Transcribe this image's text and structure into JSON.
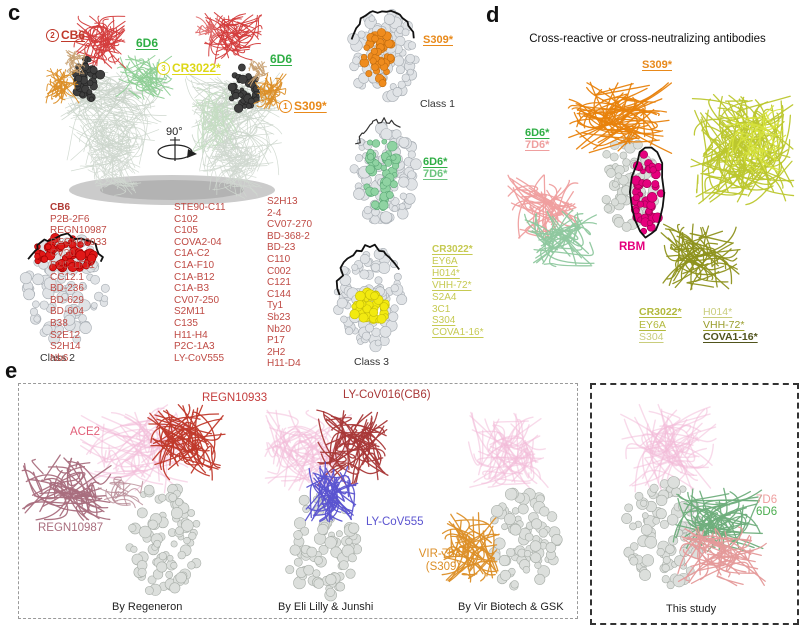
{
  "panel_c": {
    "letter": "c",
    "rotation": "90°",
    "spike_labels": {
      "cb6_num": "2",
      "cb6": "CB6",
      "d6_left": "6D6",
      "cr3022_num": "3",
      "cr3022": "CR3022*",
      "d6_right": "6D6",
      "s309_num": "1",
      "s309": "S309*"
    },
    "class1_epitope": "S309*",
    "class1_caption": "Class 1",
    "d6_star": "6D6*",
    "d7_star": "7D6*",
    "class2_caption": "Class 2",
    "class3_caption": "Class 3",
    "class2_antibodies_col1": [
      "CB6",
      "P2B-2F6",
      "REGN10987",
      "REGN10933",
      "CV30",
      "P2C-1F11",
      "CC12.1",
      "BD-236",
      "BD-629",
      "BD-604",
      "B38",
      "S2E12",
      "S2H14",
      "Nb6"
    ],
    "class2_antibodies_col2": [
      "STE90-C11",
      "C102",
      "C105",
      "COVA2-04",
      "C1A-C2",
      "C1A-F10",
      "C1A-B12",
      "C1A-B3",
      "CV07-250",
      "S2M11",
      "C135",
      "H11-H4",
      "P2C-1A3",
      "LY-CoV555"
    ],
    "class2_antibodies_col3": [
      "S2H13",
      "2-4",
      "CV07-270",
      "BD-368-2",
      "BD-23",
      "C110",
      "C002",
      "C121",
      "C144",
      "Ty1",
      "Sb23",
      "Nb20",
      "P17",
      "2H2",
      "H11-D4"
    ],
    "class3_antibodies": [
      {
        "label": "CR3022*",
        "bold": true,
        "underline": true
      },
      {
        "label": "EY6A",
        "underline": true
      },
      {
        "label": "H014*",
        "underline": true
      },
      {
        "label": "VHH-72*",
        "underline": true
      },
      {
        "label": "S2A4"
      },
      {
        "label": "3C1"
      },
      {
        "label": "S304",
        "underline": true
      },
      {
        "label": "COVA1-16*",
        "underline": true
      }
    ]
  },
  "panel_d": {
    "letter": "d",
    "title": "Cross-reactive or cross-neutralizing antibodies",
    "s309": "S309*",
    "d6": "6D6*",
    "d7": "7D6*",
    "rbm": "RBM",
    "group1": [
      {
        "label": "CR3022*",
        "bold": true,
        "underline": true
      },
      {
        "label": "EY6A",
        "underline": true
      },
      {
        "label": "S304",
        "underline": true,
        "tone": "light"
      }
    ],
    "group2": [
      {
        "label": "H014*",
        "underline": true,
        "tone": "light"
      },
      {
        "label": "VHH-72*",
        "underline": true
      },
      {
        "label": "COVA1-16*",
        "bold": true,
        "underline": true,
        "tone": "dark"
      }
    ]
  },
  "panel_e": {
    "letter": "e",
    "ace2": "ACE2",
    "regn10933": "REGN10933",
    "regn10987": "REGN10987",
    "ly_cov016": "LY-CoV016(CB6)",
    "ly_cov555": "LY-CoV555",
    "vir_line1": "VIR-7831",
    "vir_line2": "(S309)",
    "d7": "7D6",
    "d6": "6D6",
    "captions": [
      "By Regeneron",
      "By Eli Lilly & Junshi",
      "By Vir Biotech & GSK",
      "This study"
    ]
  },
  "colors": {
    "cb6_red": "#c0392b",
    "antibody_list_red": "#bf4a44",
    "green_6d6": "#2fae45",
    "light_green_7d6": "#6cc47e",
    "yellow_cr3022": "#ddd717",
    "pale_yellow_list": "#c6ca52",
    "orange_s309": "#e8891a",
    "magenta_rbm": "#e5007d",
    "olive": "#989c2a",
    "olive_dark": "#50531c",
    "pink_7d6": "#ef9f9f",
    "ace2_pink": "#e2607a",
    "mauve_regn10987": "#a96e7e",
    "red_regn10933": "#c43c3c",
    "dark_red_ly016": "#a93838",
    "blue_ly555": "#5b54d0",
    "vir_orange": "#dc8f28",
    "epitope_red": "#e01818",
    "epitope_yellow": "#f2ea10",
    "epitope_orange": "#ef8c1e",
    "epitope_green": "#8fd3a2"
  }
}
